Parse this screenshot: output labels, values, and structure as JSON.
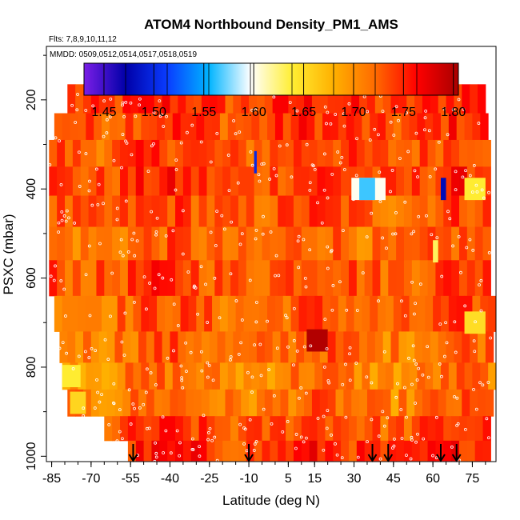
{
  "chart_data": {
    "type": "heatmap",
    "title": "ATOM4 Northbound Density_PM1_AMS",
    "subtitle_flights": "Flts: 7,8,9,10,11,12",
    "subtitle_dates": "MMDD: 0509,0512,0514,0517,0518,0519",
    "xlabel": "Latitude (deg N)",
    "ylabel": "PSXC (mbar)",
    "xlim": [
      -87,
      84
    ],
    "ylim": [
      1012,
      80
    ],
    "y_reversed": true,
    "x_ticks": [
      "-85",
      "-70",
      "-55",
      "-40",
      "-25",
      "-10",
      "5",
      "15",
      "30",
      "45",
      "60",
      "75"
    ],
    "x_tick_values": [
      -85,
      -70,
      -55,
      -40,
      -25,
      -10,
      5,
      15,
      30,
      45,
      60,
      75
    ],
    "y_ticks": [
      "200",
      "400",
      "600",
      "800",
      "1000"
    ],
    "y_tick_values": [
      200,
      400,
      600,
      800,
      1000
    ],
    "colorbar": {
      "range": [
        1.43,
        1.805
      ],
      "ticks": [
        "1.45",
        "1.50",
        "1.55",
        "1.60",
        "1.65",
        "1.70",
        "1.75",
        "1.80"
      ],
      "tick_values": [
        1.45,
        1.5,
        1.55,
        1.6,
        1.65,
        1.7,
        1.75,
        1.8
      ],
      "colors": [
        "#7a1ee6",
        "#0000a8",
        "#0a3cff",
        "#00b4ff",
        "#ffffff",
        "#ffee33",
        "#ffb000",
        "#ff6a00",
        "#ff0000",
        "#a80000"
      ]
    },
    "arrows_latitude": [
      -54,
      -10,
      37,
      43,
      63,
      69
    ],
    "bands": [
      {
        "p": 200,
        "lat_min": -79,
        "lat_max": 78,
        "value": 1.745
      },
      {
        "p": 260,
        "lat_min": -84,
        "lat_max": 80,
        "value": 1.74
      },
      {
        "p": 320,
        "lat_min": -86,
        "lat_max": 81,
        "value": 1.735
      },
      {
        "p": 380,
        "lat_min": -86,
        "lat_max": 82,
        "value": 1.74
      },
      {
        "p": 450,
        "lat_min": -86,
        "lat_max": 82,
        "value": 1.73
      },
      {
        "p": 520,
        "lat_min": -86,
        "lat_max": 82,
        "value": 1.72
      },
      {
        "p": 600,
        "lat_min": -86,
        "lat_max": 82,
        "value": 1.735
      },
      {
        "p": 680,
        "lat_min": -84,
        "lat_max": 82,
        "value": 1.725
      },
      {
        "p": 760,
        "lat_min": -82,
        "lat_max": 82,
        "value": 1.72
      },
      {
        "p": 820,
        "lat_min": -81,
        "lat_max": 82,
        "value": 1.71
      },
      {
        "p": 880,
        "lat_min": -79,
        "lat_max": 82,
        "value": 1.715
      },
      {
        "p": 940,
        "lat_min": -65,
        "lat_max": 82,
        "value": 1.735
      },
      {
        "p": 990,
        "lat_min": -56,
        "lat_max": 82,
        "value": 1.745
      }
    ],
    "anomalies": [
      {
        "p": 400,
        "lat_min": 29,
        "lat_max": 42,
        "value": 1.6
      },
      {
        "p": 400,
        "lat_min": 32,
        "lat_max": 38,
        "value": 1.565
      },
      {
        "p": 400,
        "lat_min": 72,
        "lat_max": 80,
        "value": 1.64
      },
      {
        "p": 400,
        "lat_min": 63,
        "lat_max": 65,
        "value": 1.48
      },
      {
        "p": 700,
        "lat_min": 72,
        "lat_max": 80,
        "value": 1.65
      },
      {
        "p": 740,
        "lat_min": 12,
        "lat_max": 20,
        "value": 1.8
      },
      {
        "p": 820,
        "lat_min": -81,
        "lat_max": -74,
        "value": 1.64
      },
      {
        "p": 880,
        "lat_min": -78,
        "lat_max": -72,
        "value": 1.655
      },
      {
        "p": 540,
        "lat_min": 60,
        "lat_max": 62,
        "value": 1.63
      },
      {
        "p": 340,
        "lat_min": -8,
        "lat_max": -7,
        "value": 1.5
      }
    ]
  }
}
